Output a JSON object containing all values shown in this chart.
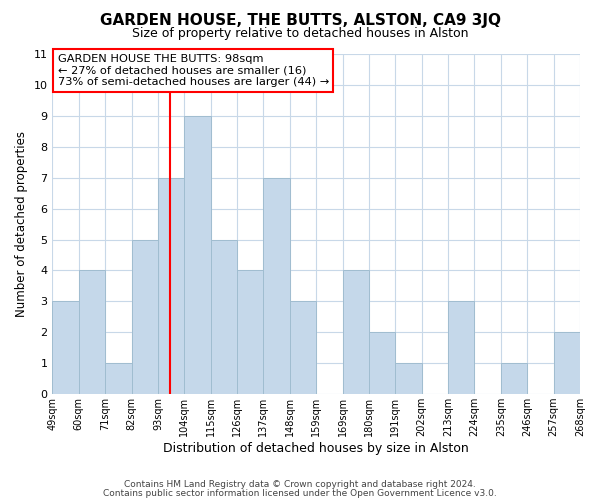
{
  "title": "GARDEN HOUSE, THE BUTTS, ALSTON, CA9 3JQ",
  "subtitle": "Size of property relative to detached houses in Alston",
  "xlabel": "Distribution of detached houses by size in Alston",
  "ylabel": "Number of detached properties",
  "bin_labels": [
    "49sqm",
    "60sqm",
    "71sqm",
    "82sqm",
    "93sqm",
    "104sqm",
    "115sqm",
    "126sqm",
    "137sqm",
    "148sqm",
    "159sqm",
    "169sqm",
    "180sqm",
    "191sqm",
    "202sqm",
    "213sqm",
    "224sqm",
    "235sqm",
    "246sqm",
    "257sqm",
    "268sqm"
  ],
  "bar_heights": [
    3,
    4,
    1,
    5,
    7,
    9,
    5,
    4,
    7,
    3,
    0,
    4,
    2,
    1,
    0,
    3,
    0,
    1,
    0,
    2
  ],
  "bar_color": "#c5d8ea",
  "bar_edge_color": "#a0bdd0",
  "ylim": [
    0,
    11
  ],
  "yticks": [
    0,
    1,
    2,
    3,
    4,
    5,
    6,
    7,
    8,
    9,
    10,
    11
  ],
  "annotation_title": "GARDEN HOUSE THE BUTTS: 98sqm",
  "annotation_line1": "← 27% of detached houses are smaller (16)",
  "annotation_line2": "73% of semi-detached houses are larger (44) →",
  "footer_line1": "Contains HM Land Registry data © Crown copyright and database right 2024.",
  "footer_line2": "Contains public sector information licensed under the Open Government Licence v3.0.",
  "background_color": "#ffffff",
  "grid_color": "#c8d8e8",
  "title_fontsize": 11,
  "subtitle_fontsize": 9
}
